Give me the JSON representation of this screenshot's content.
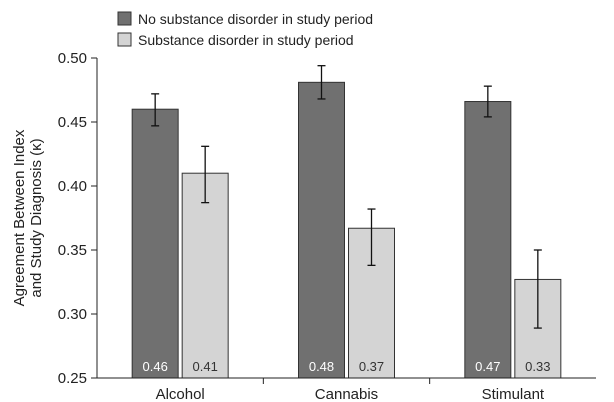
{
  "chart_data": {
    "type": "bar",
    "categories": [
      "Alcohol",
      "Cannabis",
      "Stimulant"
    ],
    "series": [
      {
        "name": "No substance disorder in study period",
        "color": "#707070",
        "values": [
          0.46,
          0.481,
          0.466
        ],
        "error_low": [
          0.447,
          0.468,
          0.454
        ],
        "error_high": [
          0.472,
          0.494,
          0.478
        ],
        "value_labels": [
          "0.46",
          "0.48",
          "0.47"
        ]
      },
      {
        "name": "Substance disorder in study period",
        "color": "#d4d4d4",
        "values": [
          0.41,
          0.367,
          0.327
        ],
        "error_low": [
          0.387,
          0.338,
          0.289
        ],
        "error_high": [
          0.431,
          0.382,
          0.35
        ],
        "value_labels": [
          "0.41",
          "0.37",
          "0.33"
        ]
      }
    ],
    "ylabel_lines": [
      "Agreement Between Index",
      "and Study Diagnosis (κ)"
    ],
    "ylim": [
      0.25,
      0.5
    ],
    "yticks": [
      "0.25",
      "0.30",
      "0.35",
      "0.40",
      "0.45",
      "0.50"
    ],
    "legend_position": "top-left",
    "grid": false
  }
}
